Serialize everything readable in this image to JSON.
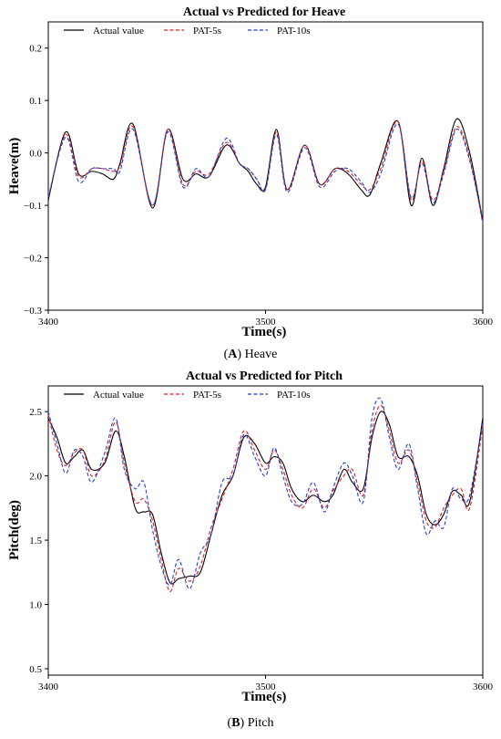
{
  "figure": {
    "caption_a_letter": "A",
    "caption_a_text": "Heave",
    "caption_b_letter": "B",
    "caption_b_text": "Pitch"
  },
  "chart_data": [
    {
      "type": "line",
      "title": "Actual vs Predicted for Heave",
      "xlabel": "Time(s)",
      "ylabel": "Heave(m)",
      "xlim": [
        3400,
        3600
      ],
      "ylim": [
        -0.3,
        0.25
      ],
      "xticks": [
        3400,
        3500,
        3600
      ],
      "yticks": [
        -0.3,
        -0.2,
        -0.1,
        0.0,
        0.1,
        0.2
      ],
      "ytick_labels": [
        "−0.3",
        "−0.2",
        "−0.1",
        "0.0",
        "0.1",
        "0.2"
      ],
      "grid": false,
      "legend": "top, horizontal",
      "x": [
        3400,
        3408,
        3414,
        3420,
        3425,
        3430,
        3433,
        3439,
        3448,
        3455,
        3462,
        3468,
        3474,
        3482,
        3488,
        3492,
        3496,
        3500,
        3505,
        3510,
        3518,
        3525,
        3532,
        3538,
        3544,
        3548,
        3553,
        3561,
        3567,
        3572,
        3577,
        3582,
        3588,
        3594,
        3600
      ],
      "series": [
        {
          "name": "Actual value",
          "color": "#000000",
          "dash": "solid",
          "values": [
            -0.09,
            0.04,
            -0.04,
            -0.035,
            -0.04,
            -0.05,
            -0.02,
            0.055,
            -0.105,
            0.045,
            -0.05,
            -0.04,
            -0.045,
            0.015,
            -0.02,
            -0.035,
            -0.06,
            -0.065,
            0.045,
            -0.07,
            0.015,
            -0.06,
            -0.03,
            -0.04,
            -0.07,
            -0.08,
            -0.02,
            0.06,
            -0.1,
            -0.01,
            -0.1,
            -0.03,
            0.065,
            0.0,
            -0.13
          ]
        },
        {
          "name": "PAT-5s",
          "color": "#e31a1c",
          "dash": "dashed",
          "values": [
            -0.085,
            0.035,
            -0.045,
            -0.03,
            -0.03,
            -0.035,
            -0.025,
            0.05,
            -0.1,
            0.045,
            -0.06,
            -0.035,
            -0.04,
            0.02,
            -0.02,
            -0.03,
            -0.05,
            -0.07,
            0.04,
            -0.07,
            0.015,
            -0.06,
            -0.03,
            -0.035,
            -0.06,
            -0.07,
            -0.03,
            0.06,
            -0.09,
            -0.015,
            -0.09,
            -0.035,
            0.05,
            -0.01,
            -0.135
          ]
        },
        {
          "name": "PAT-10s",
          "color": "#1f3fd6",
          "dash": "dashed",
          "values": [
            -0.085,
            0.03,
            -0.055,
            -0.03,
            -0.03,
            -0.03,
            -0.035,
            0.045,
            -0.1,
            0.04,
            -0.065,
            -0.03,
            -0.045,
            0.028,
            -0.02,
            -0.03,
            -0.05,
            -0.07,
            0.035,
            -0.075,
            0.01,
            -0.065,
            -0.035,
            -0.03,
            -0.055,
            -0.075,
            -0.04,
            0.055,
            -0.085,
            -0.02,
            -0.095,
            -0.04,
            0.045,
            -0.015,
            -0.13
          ]
        }
      ]
    },
    {
      "type": "line",
      "title": "Actual vs Predicted for Pitch",
      "xlabel": "Time(s)",
      "ylabel": "Pitch(deg)",
      "xlim": [
        3400,
        3600
      ],
      "ylim": [
        0.45,
        2.7
      ],
      "xticks": [
        3400,
        3500,
        3600
      ],
      "yticks": [
        0.5,
        1.0,
        1.5,
        2.0,
        2.5
      ],
      "ytick_labels": [
        "0.5",
        "1.0",
        "1.5",
        "2.0",
        "2.5"
      ],
      "grid": false,
      "legend": "top, horizontal",
      "x": [
        3400,
        3404,
        3408,
        3412,
        3416,
        3420,
        3426,
        3431,
        3435,
        3440,
        3444,
        3448,
        3452,
        3456,
        3460,
        3465,
        3470,
        3475,
        3480,
        3485,
        3490,
        3495,
        3500,
        3504,
        3508,
        3512,
        3517,
        3522,
        3527,
        3531,
        3536,
        3540,
        3545,
        3549,
        3553,
        3557,
        3561,
        3566,
        3570,
        3574,
        3578,
        3582,
        3586,
        3590,
        3594,
        3600
      ],
      "series": [
        {
          "name": "Actual value",
          "color": "#000000",
          "dash": "solid",
          "values": [
            2.45,
            2.3,
            2.1,
            2.15,
            2.2,
            2.05,
            2.1,
            2.35,
            2.15,
            1.75,
            1.72,
            1.7,
            1.4,
            1.17,
            1.2,
            1.22,
            1.25,
            1.55,
            1.85,
            2.0,
            2.3,
            2.25,
            2.1,
            2.15,
            2.1,
            1.9,
            1.8,
            1.85,
            1.8,
            1.85,
            2.05,
            1.95,
            1.9,
            2.3,
            2.5,
            2.4,
            2.15,
            2.15,
            2.0,
            1.7,
            1.62,
            1.7,
            1.88,
            1.85,
            1.8,
            2.45
          ]
        },
        {
          "name": "PAT-5s",
          "color": "#e31a1c",
          "dash": "dashed",
          "values": [
            2.48,
            2.2,
            2.08,
            2.18,
            2.2,
            2.0,
            2.12,
            2.42,
            2.1,
            1.8,
            1.82,
            1.65,
            1.35,
            1.1,
            1.28,
            1.18,
            1.3,
            1.6,
            1.82,
            2.05,
            2.35,
            2.2,
            2.05,
            2.2,
            2.05,
            1.85,
            1.75,
            1.9,
            1.75,
            1.88,
            2.0,
            2.05,
            1.85,
            2.35,
            2.55,
            2.35,
            2.1,
            2.2,
            1.95,
            1.65,
            1.6,
            1.75,
            1.85,
            1.9,
            1.75,
            2.4
          ]
        },
        {
          "name": "PAT-10s",
          "color": "#1f3fd6",
          "dash": "dashed",
          "values": [
            2.5,
            2.25,
            2.02,
            2.2,
            2.15,
            1.95,
            2.18,
            2.45,
            2.05,
            1.9,
            1.95,
            1.58,
            1.3,
            1.15,
            1.35,
            1.12,
            1.4,
            1.55,
            1.95,
            2.0,
            2.32,
            2.15,
            2.0,
            2.22,
            2.0,
            1.8,
            1.78,
            1.95,
            1.72,
            1.9,
            2.1,
            2.0,
            1.8,
            2.45,
            2.6,
            2.3,
            2.05,
            2.25,
            1.9,
            1.55,
            1.65,
            1.6,
            1.9,
            1.82,
            1.85,
            2.42
          ]
        }
      ]
    }
  ]
}
